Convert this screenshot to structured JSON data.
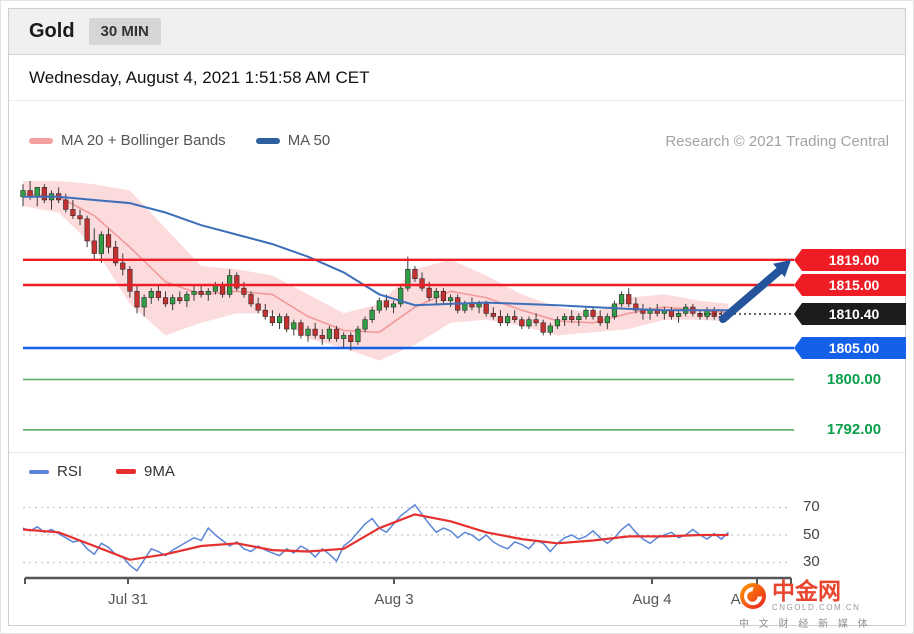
{
  "header": {
    "title": "Gold",
    "timeframe_badge": "30 MIN"
  },
  "timestamp_line": "Wednesday, August 4, 2021 1:51:58 AM CET",
  "main_legend": {
    "ma20_label": "MA 20 + Bollinger Bands",
    "ma50_label": "MA 50",
    "credit": "Research © 2021 Trading Central"
  },
  "price_labels": {
    "resistance_upper": "1819.00",
    "resistance_lower": "1815.00",
    "last_price": "1810.40",
    "support_blue": "1805.00",
    "support_green_1": "1800.00",
    "support_green_2": "1792.00"
  },
  "rsi_legend": {
    "rsi_label": "RSI",
    "ma9_label": "9MA"
  },
  "rsi_axis_labels": [
    "70",
    "50",
    "30"
  ],
  "x_axis_labels": [
    {
      "text": "Jul 31"
    },
    {
      "text": "Aug 3"
    },
    {
      "text": "Aug 4"
    },
    {
      "text": "Aug"
    }
  ],
  "watermark": {
    "brand": "中金网",
    "domain": "CNGOLD.COM.CN",
    "tagline": "中 文 财 经 新 媒 体"
  },
  "colors": {
    "red": "#ee1c25",
    "blue": "#1560e8",
    "black": "#1c1c1c",
    "green_line": "#66b06e",
    "green_text": "#0a9f4a",
    "ma50": "#3e6fb8",
    "ma20": "#f29a9a",
    "bollinger_fill": "rgba(248,160,165,0.38)",
    "up_candle": "#2f9e44",
    "down_candle": "#c53030",
    "arrow": "#24549c",
    "rsi_line": "#5b86d7",
    "rsi_ma": "#e63030"
  },
  "chart_data": [
    {
      "type": "candlestick",
      "instrument": "Gold",
      "interval": "30 MIN",
      "title": "Gold 30 MIN with MA 20 + Bollinger Bands and MA 50",
      "ylim": [
        1789,
        1833
      ],
      "x_axis_labels": [
        "Jul 31",
        "Aug 3",
        "Aug 4",
        "Aug"
      ],
      "levels": {
        "resistance": [
          1819.0,
          1815.0
        ],
        "support": [
          1805.0
        ],
        "green": [
          1800.0,
          1792.0
        ],
        "last": 1810.4
      },
      "annotation": {
        "type": "up-arrow",
        "from": 1810.4,
        "to": 1819.0,
        "meaning": "bullish projection toward resistance"
      },
      "candles": [
        [
          1829,
          1831,
          1827.5,
          1830
        ],
        [
          1830,
          1831.5,
          1828.5,
          1829
        ],
        [
          1829,
          1830.5,
          1827.5,
          1830.5
        ],
        [
          1830.5,
          1831,
          1828,
          1828.5
        ],
        [
          1828.5,
          1830,
          1827,
          1829.5
        ],
        [
          1829.5,
          1830.5,
          1828,
          1828.5
        ],
        [
          1828.5,
          1829.5,
          1826.5,
          1827
        ],
        [
          1827,
          1828.5,
          1825.5,
          1826
        ],
        [
          1826,
          1827,
          1824.5,
          1825.5
        ],
        [
          1825.5,
          1826,
          1821,
          1822
        ],
        [
          1822,
          1824,
          1819,
          1820
        ],
        [
          1820,
          1823.5,
          1818.5,
          1823
        ],
        [
          1823,
          1824,
          1820,
          1821
        ],
        [
          1821,
          1822,
          1818,
          1818.5
        ],
        [
          1818.5,
          1820,
          1816.5,
          1817.5
        ],
        [
          1817.5,
          1818,
          1813,
          1814
        ],
        [
          1814,
          1815,
          1810.5,
          1811.5
        ],
        [
          1811.5,
          1813.5,
          1810,
          1813
        ],
        [
          1813,
          1814.5,
          1812,
          1814
        ],
        [
          1814,
          1815,
          1812.5,
          1813
        ],
        [
          1813,
          1814,
          1811.5,
          1812
        ],
        [
          1812,
          1813.5,
          1811,
          1813
        ],
        [
          1813,
          1814,
          1812,
          1812.5
        ],
        [
          1812.5,
          1814,
          1811.5,
          1813.5
        ],
        [
          1813.5,
          1815,
          1812.5,
          1814
        ],
        [
          1814,
          1815,
          1813,
          1813.5
        ],
        [
          1813.5,
          1814.5,
          1812.5,
          1814
        ],
        [
          1814,
          1815.5,
          1813.5,
          1815
        ],
        [
          1815,
          1815.5,
          1813,
          1813.5
        ],
        [
          1813.5,
          1817.5,
          1813,
          1816.5
        ],
        [
          1816.5,
          1817,
          1814,
          1814.5
        ],
        [
          1814.5,
          1815.5,
          1813,
          1813.5
        ],
        [
          1813.5,
          1814,
          1811.5,
          1812
        ],
        [
          1812,
          1813,
          1810.5,
          1811
        ],
        [
          1811,
          1812,
          1809.5,
          1810
        ],
        [
          1810,
          1811,
          1808.5,
          1809
        ],
        [
          1809,
          1810.5,
          1808,
          1810
        ],
        [
          1810,
          1810.5,
          1807.5,
          1808
        ],
        [
          1808,
          1809.5,
          1807,
          1809
        ],
        [
          1809,
          1809.5,
          1806.5,
          1807
        ],
        [
          1807,
          1808.5,
          1806,
          1808
        ],
        [
          1808,
          1809,
          1806.5,
          1807
        ],
        [
          1807,
          1808,
          1805.5,
          1806.5
        ],
        [
          1806.5,
          1808.5,
          1806,
          1808
        ],
        [
          1808,
          1808.5,
          1806,
          1806.5
        ],
        [
          1806.5,
          1807.5,
          1805,
          1807
        ],
        [
          1807,
          1807.5,
          1804.6,
          1806
        ],
        [
          1806,
          1808.5,
          1805.5,
          1808
        ],
        [
          1808,
          1810,
          1807.5,
          1809.5
        ],
        [
          1809.5,
          1811.5,
          1809,
          1811
        ],
        [
          1811,
          1813,
          1810.5,
          1812.5
        ],
        [
          1812.5,
          1813.5,
          1811,
          1811.5
        ],
        [
          1811.5,
          1812.5,
          1810.5,
          1812
        ],
        [
          1812,
          1815,
          1811.5,
          1814.5
        ],
        [
          1814.5,
          1819.5,
          1814,
          1817.5
        ],
        [
          1817.5,
          1818,
          1815.5,
          1816
        ],
        [
          1816,
          1817,
          1814,
          1814.5
        ],
        [
          1814.5,
          1815.5,
          1812.5,
          1813
        ],
        [
          1813,
          1814.5,
          1812,
          1814
        ],
        [
          1814,
          1814.5,
          1812,
          1812.5
        ],
        [
          1812.5,
          1813.5,
          1811.5,
          1813
        ],
        [
          1813,
          1813.5,
          1810.5,
          1811
        ],
        [
          1811,
          1812.5,
          1810.5,
          1812
        ],
        [
          1812,
          1813,
          1811,
          1811.5
        ],
        [
          1811.5,
          1812.5,
          1810.5,
          1812
        ],
        [
          1812,
          1812.5,
          1810,
          1810.5
        ],
        [
          1810.5,
          1811.5,
          1809.5,
          1810
        ],
        [
          1810,
          1811,
          1808.5,
          1809
        ],
        [
          1809,
          1810.5,
          1808.5,
          1810
        ],
        [
          1810,
          1811,
          1809,
          1809.5
        ],
        [
          1809.5,
          1810,
          1808,
          1808.5
        ],
        [
          1808.5,
          1810,
          1808,
          1809.5
        ],
        [
          1809.5,
          1810.5,
          1808.5,
          1809
        ],
        [
          1809,
          1809.5,
          1807,
          1807.5
        ],
        [
          1807.5,
          1809,
          1807,
          1808.5
        ],
        [
          1808.5,
          1810,
          1808,
          1809.5
        ],
        [
          1809.5,
          1810.5,
          1808.5,
          1810
        ],
        [
          1810,
          1811,
          1809,
          1809.5
        ],
        [
          1809.5,
          1810.5,
          1808.5,
          1810
        ],
        [
          1810,
          1811.5,
          1809.5,
          1811
        ],
        [
          1811,
          1811.5,
          1809.5,
          1810
        ],
        [
          1810,
          1811,
          1808.5,
          1809
        ],
        [
          1809,
          1810.5,
          1808,
          1810
        ],
        [
          1810,
          1812.5,
          1809.5,
          1812
        ],
        [
          1812,
          1814,
          1811.5,
          1813.5
        ],
        [
          1813.5,
          1814.5,
          1811.5,
          1812
        ],
        [
          1812,
          1813,
          1810.5,
          1811
        ],
        [
          1811,
          1812,
          1809.5,
          1810.5
        ],
        [
          1810.5,
          1811.5,
          1809.5,
          1811
        ],
        [
          1811,
          1812,
          1810,
          1810.5
        ],
        [
          1810.5,
          1811.5,
          1809.5,
          1811
        ],
        [
          1811,
          1811.5,
          1809.5,
          1810
        ],
        [
          1810,
          1811,
          1809,
          1810.5
        ],
        [
          1810.5,
          1812,
          1810,
          1811.5
        ],
        [
          1811.5,
          1812,
          1810,
          1810.5
        ],
        [
          1810.5,
          1811,
          1809.5,
          1810
        ],
        [
          1810,
          1811.5,
          1809.5,
          1811
        ],
        [
          1811,
          1811.5,
          1809.5,
          1810
        ],
        [
          1810,
          1811,
          1809,
          1810
        ],
        [
          1810,
          1811,
          1809.5,
          1810.4
        ]
      ],
      "ma20_sampled": {
        "step": 5,
        "values": [
          1829.5,
          1829,
          1826,
          1821,
          1815.5,
          1813.5,
          1814,
          1813.5,
          1810,
          1807.8,
          1807.5,
          1811.5,
          1814,
          1813,
          1811,
          1809.3,
          1809,
          1810.5,
          1811.5,
          1811,
          1810.6
        ]
      },
      "ma50_sampled": {
        "step": 5,
        "values": [
          1829,
          1829,
          1828.5,
          1828,
          1826.5,
          1824.5,
          1823,
          1821.5,
          1819.5,
          1817,
          1813.5,
          1811.8,
          1812,
          1812.2,
          1812,
          1811.8,
          1811.5,
          1811.2,
          1811,
          1811,
          1811
        ]
      },
      "bollinger_upper_sampled": {
        "step": 5,
        "values": [
          1831.5,
          1831.5,
          1831,
          1830,
          1824,
          1818,
          1817.5,
          1816.5,
          1813.5,
          1810.5,
          1812,
          1817.5,
          1819,
          1816.5,
          1813.5,
          1811.5,
          1810.5,
          1813,
          1813.5,
          1812.5,
          1812
        ]
      },
      "bollinger_lower_sampled": {
        "step": 5,
        "values": [
          1827.5,
          1826.5,
          1821,
          1812,
          1807,
          1809,
          1810.5,
          1810.5,
          1806.5,
          1805,
          1803,
          1805.5,
          1809,
          1809.5,
          1808.5,
          1807,
          1807.5,
          1808,
          1809.5,
          1809.5,
          1809.2
        ]
      }
    },
    {
      "type": "line",
      "name": "RSI with 9MA",
      "ylim": [
        15,
        85
      ],
      "gridlines": [
        70,
        50,
        30
      ],
      "x_axis_labels": [
        "Jul 31",
        "Aug 3",
        "Aug 4",
        "Aug"
      ],
      "rsi": [
        55,
        53,
        56,
        52,
        54,
        51,
        48,
        45,
        46,
        40,
        36,
        44,
        41,
        36,
        34,
        28,
        24,
        32,
        40,
        38,
        35,
        39,
        42,
        45,
        48,
        46,
        55,
        50,
        46,
        42,
        45,
        40,
        38,
        42,
        39,
        37,
        35,
        40,
        37,
        42,
        39,
        34,
        40,
        36,
        31,
        42,
        46,
        52,
        58,
        62,
        55,
        52,
        58,
        64,
        68,
        72,
        65,
        58,
        52,
        55,
        53,
        48,
        52,
        50,
        46,
        50,
        45,
        42,
        40,
        45,
        43,
        40,
        46,
        44,
        38,
        44,
        48,
        50,
        47,
        49,
        53,
        48,
        44,
        48,
        54,
        58,
        52,
        47,
        44,
        48,
        50,
        52,
        48,
        50,
        54,
        50,
        47,
        51,
        47,
        52
      ],
      "ma9_sampled": {
        "step": 5,
        "values": [
          54,
          52,
          42,
          32,
          36,
          42,
          44,
          39,
          38,
          40,
          55,
          65,
          60,
          52,
          47,
          44,
          46,
          49,
          49,
          50,
          50
        ]
      }
    }
  ]
}
